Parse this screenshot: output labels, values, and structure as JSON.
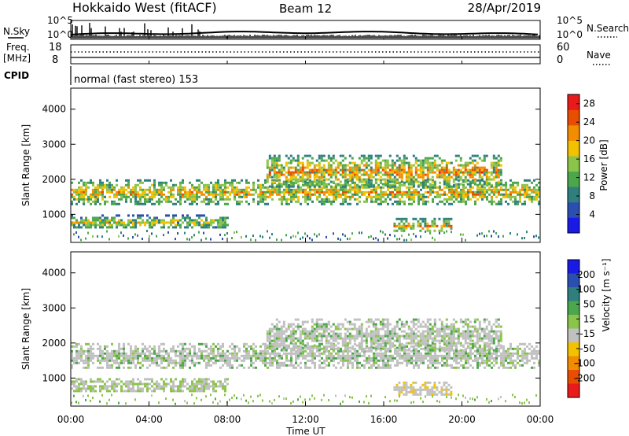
{
  "header": {
    "radar": "Hokkaido West (fitACF)",
    "beam": "Beam 12",
    "date": "28/Apr/2019"
  },
  "noise_panel": {
    "left_label": "N.Sky",
    "right_label": "N.Search",
    "tick_top": "10^5",
    "tick_bottom": "10^0"
  },
  "freq_panel": {
    "left_label_top": "Freq.",
    "left_label_unit": "[MHz]",
    "left_ticks": [
      "18",
      "8"
    ],
    "right_label": "Nave",
    "right_ticks": [
      "60",
      "0"
    ]
  },
  "cpid": {
    "label": "CPID",
    "text": "normal (fast stereo) 153"
  },
  "power_panel": {
    "ylabel": "Slant Range [km]",
    "yticks": [
      "1000",
      "2000",
      "3000",
      "4000"
    ],
    "colorbar_label": "Power [dB]",
    "colorbar_ticks": [
      "4",
      "8",
      "12",
      "16",
      "20",
      "24",
      "28"
    ],
    "colors": [
      "#1a1ae6",
      "#2b4fb0",
      "#2f7f7f",
      "#4ca64c",
      "#8bc44a",
      "#f2c200",
      "#f28c00",
      "#e84d00",
      "#e81a1a"
    ]
  },
  "velocity_panel": {
    "ylabel": "Slant Range [km]",
    "yticks": [
      "1000",
      "2000",
      "3000",
      "4000"
    ],
    "colorbar_label": "Velocity [m s⁻¹]",
    "colorbar_ticks": [
      "200",
      "100",
      "50",
      "15",
      "-15",
      "-50",
      "-100",
      "-200"
    ],
    "colors": [
      "#1a1ae6",
      "#2b4fb0",
      "#2f7f7f",
      "#4ca64c",
      "#8bc44a",
      "#c0c0c0",
      "#f2c200",
      "#f28c00",
      "#e84d00",
      "#e81a1a"
    ]
  },
  "xaxis": {
    "ticks": [
      "00:00",
      "04:00",
      "08:00",
      "12:00",
      "16:00",
      "20:00",
      "00:00"
    ],
    "label": "Time UT"
  },
  "chart_data": [
    {
      "type": "heatmap",
      "title": "Power",
      "xlabel": "Time UT",
      "ylabel": "Slant Range [km]",
      "xlim": [
        0,
        24
      ],
      "ylim": [
        200,
        4600
      ],
      "colorbar_label": "Power [dB]",
      "colorbar_range": [
        0,
        30
      ],
      "echo_bands": [
        {
          "range_km": [
            1300,
            2000
          ],
          "time_ut": [
            0,
            24
          ],
          "power_db": [
            8,
            26
          ]
        },
        {
          "range_km": [
            1800,
            2700
          ],
          "time_ut": [
            10,
            22
          ],
          "power_db": [
            8,
            28
          ]
        },
        {
          "range_km": [
            600,
            1000
          ],
          "time_ut": [
            0,
            8
          ],
          "power_db": [
            6,
            22
          ]
        },
        {
          "range_km": [
            500,
            900
          ],
          "time_ut": [
            16.5,
            19.5
          ],
          "power_db": [
            8,
            26
          ]
        }
      ]
    },
    {
      "type": "heatmap",
      "title": "Velocity",
      "xlabel": "Time UT",
      "ylabel": "Slant Range [km]",
      "xlim": [
        0,
        24
      ],
      "ylim": [
        200,
        4600
      ],
      "colorbar_label": "Velocity [m s⁻¹]",
      "colorbar_range": [
        -250,
        250
      ],
      "echo_bands": [
        {
          "range_km": [
            1300,
            2000
          ],
          "time_ut": [
            0,
            24
          ],
          "velocity": [
            -50,
            50
          ]
        },
        {
          "range_km": [
            1800,
            2700
          ],
          "time_ut": [
            10,
            22
          ],
          "velocity": [
            -50,
            50
          ]
        },
        {
          "range_km": [
            600,
            1000
          ],
          "time_ut": [
            0,
            8
          ],
          "velocity": [
            -15,
            15
          ]
        },
        {
          "range_km": [
            500,
            900
          ],
          "time_ut": [
            16.5,
            19.5
          ],
          "velocity": [
            -100,
            -15
          ]
        }
      ]
    }
  ]
}
